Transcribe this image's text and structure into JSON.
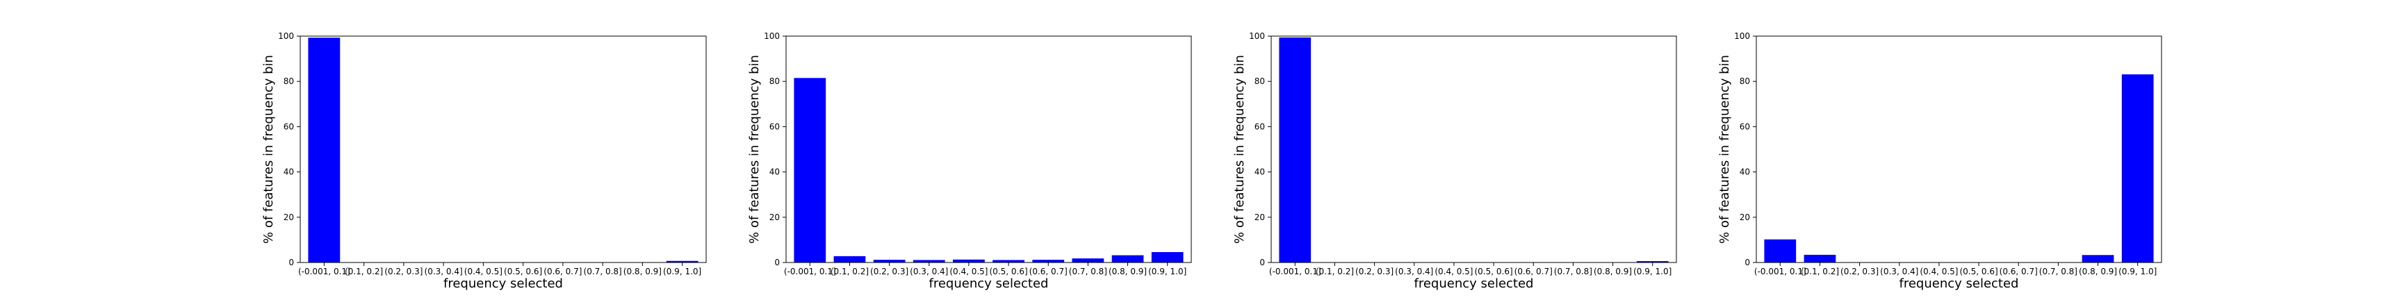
{
  "figure": {
    "bar_color": "#0000ff",
    "axis_color": "#000000",
    "background": "#ffffff"
  },
  "chart_data": [
    {
      "type": "bar",
      "categories": [
        "(-0.001, 0.1]",
        "(0.1, 0.2]",
        "(0.2, 0.3]",
        "(0.3, 0.4]",
        "(0.4, 0.5]",
        "(0.5, 0.6]",
        "(0.6, 0.7]",
        "(0.7, 0.8]",
        "(0.8, 0.9]",
        "(0.9, 1.0]"
      ],
      "values": [
        99.3,
        0,
        0,
        0,
        0,
        0,
        0,
        0,
        0,
        0.7
      ],
      "xlabel": "frequency selected",
      "ylabel": "% of features in frequency bin",
      "ylim": [
        0,
        100
      ],
      "yticks": [
        0,
        20,
        40,
        60,
        80,
        100
      ],
      "grid": false
    },
    {
      "type": "bar",
      "categories": [
        "(-0.001, 0.1]",
        "(0.1, 0.2]",
        "(0.2, 0.3]",
        "(0.3, 0.4]",
        "(0.4, 0.5]",
        "(0.5, 0.6]",
        "(0.6, 0.7]",
        "(0.7, 0.8]",
        "(0.8, 0.9]",
        "(0.9, 1.0]"
      ],
      "values": [
        81.5,
        2.8,
        1.2,
        1.1,
        1.3,
        1.1,
        1.2,
        1.8,
        3.2,
        4.6
      ],
      "xlabel": "frequency selected",
      "ylabel": "% of features in frequency bin",
      "ylim": [
        0,
        100
      ],
      "yticks": [
        0,
        20,
        40,
        60,
        80,
        100
      ],
      "grid": false
    },
    {
      "type": "bar",
      "categories": [
        "(-0.001, 0.1]",
        "(0.1, 0.2]",
        "(0.2, 0.3]",
        "(0.3, 0.4]",
        "(0.4, 0.5]",
        "(0.5, 0.6]",
        "(0.6, 0.7]",
        "(0.7, 0.8]",
        "(0.8, 0.9]",
        "(0.9, 1.0]"
      ],
      "values": [
        99.4,
        0,
        0,
        0,
        0,
        0,
        0,
        0,
        0,
        0.6
      ],
      "xlabel": "frequency selected",
      "ylabel": "% of features in frequency bin",
      "ylim": [
        0,
        100
      ],
      "yticks": [
        0,
        20,
        40,
        60,
        80,
        100
      ],
      "grid": false
    },
    {
      "type": "bar",
      "categories": [
        "(-0.001, 0.1]",
        "(0.1, 0.2]",
        "(0.2, 0.3]",
        "(0.3, 0.4]",
        "(0.4, 0.5]",
        "(0.5, 0.6]",
        "(0.6, 0.7]",
        "(0.7, 0.8]",
        "(0.8, 0.9]",
        "(0.9, 1.0]"
      ],
      "values": [
        10.2,
        3.4,
        0,
        0,
        0,
        0,
        0,
        0,
        3.3,
        83.1
      ],
      "xlabel": "frequency selected",
      "ylabel": "% of features in frequency bin",
      "ylim": [
        0,
        100
      ],
      "yticks": [
        0,
        20,
        40,
        60,
        80,
        100
      ],
      "grid": false
    }
  ]
}
